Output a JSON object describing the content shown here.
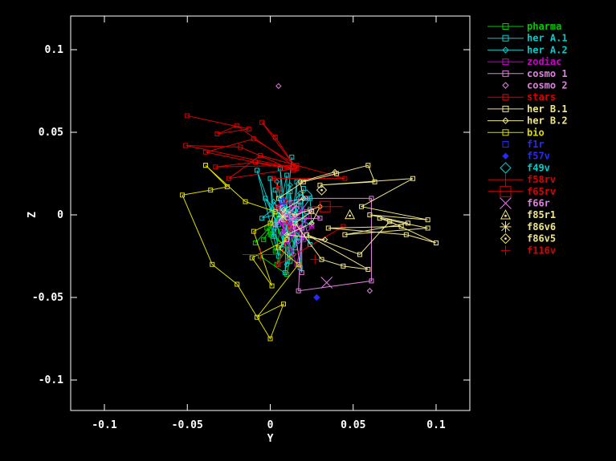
{
  "background": "#000000",
  "frame_color": "#ffffff",
  "chart_data": {
    "type": "scatter",
    "title": "",
    "xlabel": "Y",
    "ylabel": "Z",
    "xlim": [
      -0.12,
      0.12
    ],
    "ylim": [
      -0.12,
      0.12
    ],
    "grid": false,
    "legend_position": "right-outside",
    "xticks": [
      -0.1,
      -0.05,
      0,
      0.05,
      0.1
    ],
    "yticks": [
      0.1,
      0.05,
      0,
      -0.05,
      -0.1
    ],
    "xtick_labels": [
      "-0.1",
      "-0.05",
      "0",
      "0.05",
      "0.1"
    ],
    "ytick_labels": [
      "0.1",
      "0.05",
      "0",
      "-0.05",
      "-0.1"
    ],
    "series": [
      {
        "name": "pharma",
        "color": "#00CC00",
        "marker": "square",
        "size": 5,
        "line": true,
        "points": [
          [
            -0.009,
            -0.017
          ],
          [
            0.002,
            -0.005
          ],
          [
            -0.004,
            -0.015
          ],
          [
            0.005,
            0.0
          ],
          [
            0.0,
            -0.012
          ],
          [
            0.008,
            -0.018
          ],
          [
            -0.002,
            -0.008
          ],
          [
            0.003,
            -0.022
          ],
          [
            0.006,
            -0.01
          ],
          [
            0.012,
            -0.025
          ],
          [
            0.01,
            -0.005
          ],
          [
            0.004,
            -0.03
          ],
          [
            0.015,
            -0.012
          ],
          [
            0.01,
            -0.036
          ],
          [
            -0.006,
            -0.025
          ]
        ]
      },
      {
        "name": "her A.1",
        "color": "#00CDCD",
        "marker": "square",
        "size": 5,
        "line": true,
        "points": [
          [
            0.013,
            0.035
          ],
          [
            0.008,
            -0.018
          ],
          [
            0.006,
            0.028
          ],
          [
            0.012,
            -0.028
          ],
          [
            -0.008,
            0.027
          ],
          [
            0.005,
            -0.025
          ],
          [
            0.0,
            0.022
          ],
          [
            0.002,
            -0.013
          ],
          [
            0.01,
            0.024
          ],
          [
            0.009,
            -0.035
          ],
          [
            0.016,
            0.02
          ],
          [
            0.015,
            -0.02
          ],
          [
            0.003,
            0.015
          ],
          [
            0.012,
            -0.01
          ],
          [
            0.012,
            0.014
          ],
          [
            0.018,
            -0.032
          ],
          [
            0.02,
            0.016
          ],
          [
            0.019,
            -0.014
          ],
          [
            -0.003,
            0.01
          ],
          [
            0.005,
            -0.006
          ],
          [
            0.007,
            0.008
          ],
          [
            0.024,
            -0.018
          ],
          [
            0.018,
            0.008
          ],
          [
            0.015,
            -0.003
          ],
          [
            0.024,
            0.01
          ],
          [
            0.025,
            -0.006
          ],
          [
            0.001,
            0.003
          ],
          [
            -0.005,
            -0.002
          ],
          [
            0.01,
            0.002
          ],
          [
            0.022,
            0.002
          ]
        ]
      },
      {
        "name": "her A.2",
        "color": "#00CDCD",
        "marker": "diamond",
        "size": 6,
        "line": true,
        "points": [
          [
            0.004,
            0.02
          ],
          [
            0.011,
            -0.012
          ],
          [
            0.012,
            0.018
          ],
          [
            0.003,
            -0.008
          ],
          [
            0.018,
            0.013
          ],
          [
            0.013,
            -0.004
          ],
          [
            0.002,
            0.008
          ],
          [
            0.017,
            -0.016
          ],
          [
            0.009,
            0.005
          ],
          [
            0.007,
            -0.02
          ],
          [
            0.016,
            0.004
          ],
          [
            0.014,
            -0.024
          ],
          [
            0.006,
            -0.001
          ],
          [
            0.021,
            -0.002
          ],
          [
            0.01,
            -0.03
          ]
        ]
      },
      {
        "name": "zodiac",
        "color": "#CD00CD",
        "marker": "square",
        "size": 5,
        "line": true,
        "points": [
          [
            0.007,
            0.006
          ],
          [
            0.008,
            -0.011
          ],
          [
            0.013,
            0.006
          ],
          [
            0.014,
            -0.013
          ],
          [
            0.019,
            0.004
          ],
          [
            0.012,
            -0.006
          ],
          [
            0.009,
            0.001
          ],
          [
            0.02,
            -0.015
          ],
          [
            0.015,
            0.0
          ],
          [
            0.01,
            -0.018
          ],
          [
            0.022,
            -0.001
          ],
          [
            0.016,
            -0.03
          ],
          [
            0.006,
            -0.004
          ],
          [
            0.018,
            -0.008
          ],
          [
            0.025,
            -0.007
          ],
          [
            0.012,
            -0.022
          ]
        ]
      },
      {
        "name": "cosmo 1",
        "color": "#DD82DD",
        "marker": "square",
        "size": 5,
        "line": true,
        "points": [
          [
            0.005,
            0.004
          ],
          [
            0.01,
            0.008
          ],
          [
            0.021,
            0.01
          ],
          [
            0.061,
            0.01
          ],
          [
            0.061,
            -0.04
          ],
          [
            0.017,
            -0.046
          ],
          [
            0.019,
            -0.008
          ],
          [
            0.019,
            -0.035
          ],
          [
            0.013,
            -0.001
          ],
          [
            0.024,
            0.003
          ],
          [
            0.03,
            -0.002
          ],
          [
            0.008,
            -0.003
          ],
          [
            0.016,
            0.006
          ],
          [
            0.003,
            -0.006
          ]
        ]
      },
      {
        "name": "cosmo 2",
        "color": "#DD82DD",
        "marker": "diamond",
        "size": 6,
        "line": false,
        "points": [
          [
            0.005,
            0.078
          ],
          [
            0.008,
            0.001
          ],
          [
            0.014,
            -0.007
          ],
          [
            0.06,
            -0.046
          ]
        ]
      },
      {
        "name": "stars",
        "color": "#DD0000",
        "marker": "square",
        "size": 5,
        "line": true,
        "points": [
          [
            -0.05,
            0.06
          ],
          [
            -0.013,
            0.052
          ],
          [
            -0.032,
            0.049
          ],
          [
            -0.02,
            0.054
          ],
          [
            0.015,
            0.029
          ],
          [
            -0.005,
            0.056
          ],
          [
            0.003,
            0.047
          ],
          [
            0.016,
            0.028
          ],
          [
            -0.051,
            0.042
          ],
          [
            -0.018,
            0.041
          ],
          [
            0.014,
            0.027
          ],
          [
            -0.039,
            0.038
          ],
          [
            -0.01,
            0.046
          ],
          [
            0.016,
            0.03
          ],
          [
            -0.033,
            0.029
          ],
          [
            -0.009,
            0.032
          ],
          [
            0.015,
            0.028
          ],
          [
            -0.025,
            0.022
          ],
          [
            -0.006,
            0.036
          ],
          [
            0.045,
            0.022
          ],
          [
            0.002,
            0.022
          ],
          [
            0.005,
            0.016
          ],
          [
            0.01,
            0.008
          ],
          [
            0.004,
            0.005
          ],
          [
            0.012,
            -0.008
          ],
          [
            0.005,
            -0.03
          ],
          [
            0.044,
            -0.007
          ]
        ]
      },
      {
        "name": "her B.1",
        "color": "#F0E68C",
        "marker": "square",
        "size": 5,
        "line": true,
        "points": [
          [
            0.005,
            0.01
          ],
          [
            0.02,
            0.02
          ],
          [
            0.04,
            0.025
          ],
          [
            0.059,
            0.03
          ],
          [
            0.063,
            0.02
          ],
          [
            0.03,
            0.018
          ],
          [
            0.086,
            0.022
          ],
          [
            0.055,
            0.005
          ],
          [
            0.095,
            -0.003
          ],
          [
            0.06,
            0.0
          ],
          [
            0.083,
            -0.005
          ],
          [
            0.045,
            -0.012
          ],
          [
            0.095,
            -0.008
          ],
          [
            0.066,
            -0.002
          ],
          [
            0.079,
            -0.007
          ],
          [
            0.035,
            -0.008
          ],
          [
            0.082,
            -0.012
          ],
          [
            0.1,
            -0.017
          ],
          [
            0.072,
            -0.004
          ],
          [
            0.054,
            -0.024
          ],
          [
            0.022,
            -0.012
          ],
          [
            0.059,
            -0.033
          ],
          [
            0.044,
            -0.031
          ],
          [
            0.031,
            -0.027
          ],
          [
            0.015,
            -0.005
          ],
          [
            0.025,
            0.002
          ]
        ]
      },
      {
        "name": "her B.2",
        "color": "#F0E68C",
        "marker": "diamond",
        "size": 6,
        "line": true,
        "points": [
          [
            0.039,
            0.026
          ],
          [
            0.018,
            0.02
          ],
          [
            0.02,
            0.01
          ],
          [
            0.008,
            0.003
          ],
          [
            0.015,
            0.0
          ],
          [
            0.03,
            0.005
          ],
          [
            0.025,
            -0.005
          ],
          [
            0.01,
            -0.012
          ],
          [
            0.033,
            -0.015
          ]
        ]
      },
      {
        "name": "bio",
        "color": "#DCDC00",
        "marker": "square",
        "size": 5,
        "line": true,
        "points": [
          [
            -0.039,
            0.03
          ],
          [
            -0.026,
            0.017
          ],
          [
            -0.036,
            0.015
          ],
          [
            -0.053,
            0.012
          ],
          [
            -0.035,
            -0.03
          ],
          [
            -0.02,
            -0.042
          ],
          [
            0.0,
            -0.075
          ],
          [
            0.008,
            -0.054
          ],
          [
            -0.008,
            -0.062
          ],
          [
            0.017,
            -0.03
          ],
          [
            0.005,
            -0.02
          ],
          [
            0.01,
            -0.015
          ],
          [
            -0.011,
            -0.026
          ],
          [
            0.001,
            -0.043
          ],
          [
            -0.01,
            -0.01
          ],
          [
            0.0,
            -0.005
          ],
          [
            0.003,
            0.002
          ],
          [
            -0.015,
            0.008
          ],
          [
            -0.039,
            0.03
          ]
        ]
      },
      {
        "name": "f1r",
        "color": "#2828FF",
        "marker": "square_small",
        "size": 6,
        "line": false,
        "points": [
          [
            0.0075,
            0.008
          ]
        ]
      },
      {
        "name": "f57v",
        "color": "#2828FF",
        "marker": "diamond_filled",
        "size": 7,
        "line": false,
        "points": [
          [
            0.028,
            -0.05
          ]
        ]
      },
      {
        "name": "f49v",
        "color": "#00CDCD",
        "marker": "diamond_big",
        "size": 13,
        "line": false,
        "points": [
          [
            0.022,
            0.012
          ]
        ]
      },
      {
        "name": "f58rv",
        "color": "#DD0000",
        "marker": "plus_wide",
        "size": 16,
        "line": false,
        "points": [
          [
            -0.006,
            -0.024
          ]
        ]
      },
      {
        "name": "f65rv",
        "color": "#DD0000",
        "marker": "square_bar",
        "size": 13,
        "line": false,
        "points": [
          [
            0.033,
            0.005
          ]
        ]
      },
      {
        "name": "f66r",
        "color": "#DD82DD",
        "marker": "x_big",
        "size": 14,
        "line": false,
        "points": [
          [
            0.034,
            -0.041
          ]
        ]
      },
      {
        "name": "f85r1",
        "color": "#F0E68C",
        "marker": "triangle_dot",
        "size": 12,
        "line": false,
        "points": [
          [
            0.048,
            0.0
          ]
        ]
      },
      {
        "name": "f86v6",
        "color": "#F0E68C",
        "marker": "asterisk",
        "size": 14,
        "line": false,
        "points": [
          [
            0.0075,
            -0.001
          ]
        ]
      },
      {
        "name": "f86v5",
        "color": "#F0E68C",
        "marker": "diamond_dot",
        "size": 12,
        "line": false,
        "points": [
          [
            0.031,
            0.015
          ]
        ]
      },
      {
        "name": "f116v",
        "color": "#DD0000",
        "marker": "plus",
        "size": 12,
        "line": false,
        "points": [
          [
            0.027,
            -0.027
          ]
        ]
      }
    ]
  }
}
